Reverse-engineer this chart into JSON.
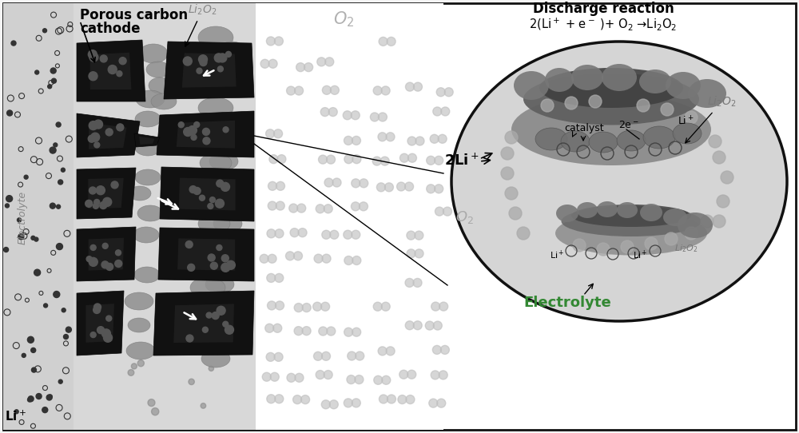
{
  "bg_color": "#f5f5f5",
  "border_color": "#111111",
  "electrolyte_bg": "#d0d0d0",
  "cathode_bg": "#c8c8c8",
  "o2_region_bg": "#ffffff",
  "carbon_color": "#1a1a1a",
  "carbon_edge": "#0a0a0a",
  "li2o2_fill": "#999999",
  "li2o2_edge": "#777777",
  "o2_molecule_color": "#b0b0b0",
  "li_dot_color": "#444444",
  "ellipse_bg": "#d8d8d8",
  "ellipse_edge": "#111111",
  "upper_catalyst_color": "#555555",
  "lower_catalyst_color": "#666666",
  "electrolyte_text_color": "#999999",
  "electrolyte_label2_color": "#339933",
  "title_line1": "Porous carbon",
  "title_line2": "cathode",
  "li2o2_label": "Li$_2$O$_2$",
  "o2_label": "O$_2$",
  "li_label": "Li$^+$",
  "electrolyte_label": "Electrolyte",
  "discharge_line1": "Discharge reaction",
  "discharge_line2": "2(Li$^+$ + e$^-$ )+ O$_2$ →Li$_2$O$_2$",
  "catalyst_label": "catalyst",
  "two_e_label": "2e$^-$",
  "li_plus_label": "Li$^+$",
  "two_li_label": "2Li$^+$",
  "o2_small_label": "O$_2$",
  "electrolyte_label2": "Electrolyte",
  "li2o2_right_label": "Li$_2$O$_2$",
  "li2o2_bottom_label": "Li$_2$O$_2$"
}
